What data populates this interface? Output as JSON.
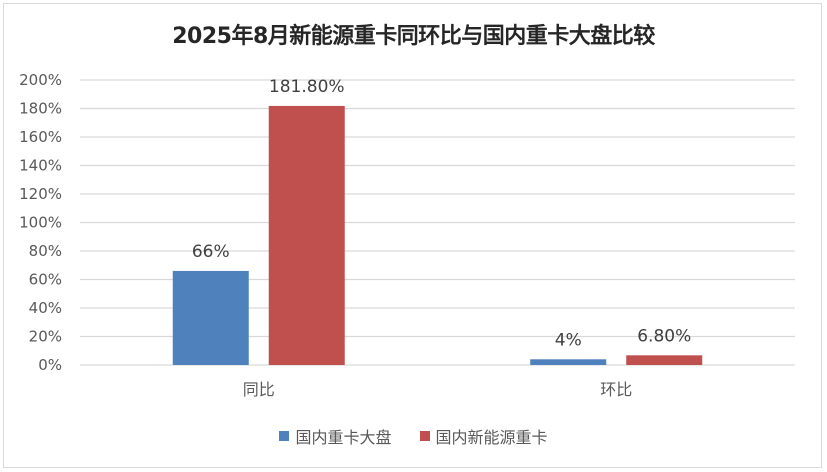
{
  "chart_data": {
    "type": "bar",
    "title": "2025年8月新能源重卡同环比与国内重卡大盘比较",
    "categories": [
      "同比",
      "环比"
    ],
    "series": [
      {
        "name": "国内重卡大盘",
        "values": [
          66,
          4
        ],
        "labels": [
          "66%",
          "4%"
        ],
        "color": "#4F81BD"
      },
      {
        "name": "国内新能源重卡",
        "values": [
          181.8,
          6.8
        ],
        "labels": [
          "181.80%",
          "6.80%"
        ],
        "color": "#C0504D"
      }
    ],
    "yticks": [
      "0%",
      "20%",
      "40%",
      "60%",
      "80%",
      "100%",
      "120%",
      "140%",
      "160%",
      "180%",
      "200%"
    ],
    "ylim": [
      0,
      200
    ],
    "yunit": "%",
    "grid": true,
    "legend": "bottom"
  }
}
